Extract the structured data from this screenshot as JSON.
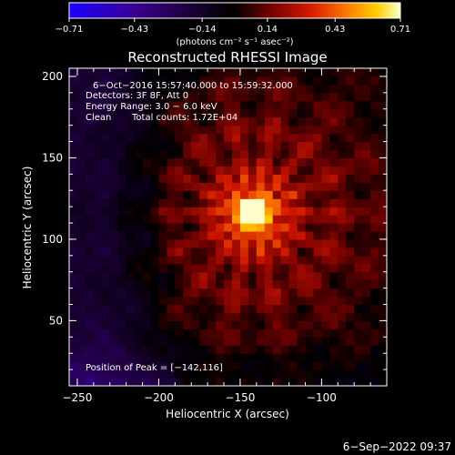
{
  "chart_data": {
    "type": "heatmap",
    "title": "Reconstructed RHESSI Image",
    "xlabel": "Heliocentric X (arcsec)",
    "ylabel": "Heliocentric Y (arcsec)",
    "xlim": [
      -255,
      -60
    ],
    "ylim": [
      10,
      205
    ],
    "xticks": [
      -250,
      -200,
      -150,
      -100
    ],
    "xtick_labels": [
      "−250",
      "−200",
      "−150",
      "−100"
    ],
    "yticks": [
      50,
      100,
      150,
      200
    ],
    "ytick_labels": [
      "50",
      "100",
      "150",
      "200"
    ],
    "colorbar": {
      "range": [
        -0.71,
        0.71
      ],
      "ticks": [
        -0.71,
        -0.43,
        -0.14,
        0.14,
        0.43,
        0.71
      ],
      "tick_labels": [
        "−0.71",
        "−0.43",
        "−0.14",
        "0.14",
        "0.43",
        "0.71"
      ],
      "unit_label": "(photons cm⁻² s⁻¹ asec⁻²)"
    },
    "peak": {
      "x": -142,
      "y": 116
    },
    "annotations": {
      "time_range": "6−Oct−2016 15:57:40.000 to 15:59:32.000",
      "detectors": "Detectors: 3F 8F, Att 0",
      "energy_range": "Energy Range: 3.0 − 6.0 keV",
      "clean": "Clean",
      "total_counts": "Total counts: 1.72E+04",
      "peak_position": "Position of Peak = [−142,116]"
    },
    "grid": false
  },
  "footer": {
    "timestamp": "6−Sep−2022 09:37"
  },
  "colormap": {
    "stops": [
      "#1a00ff",
      "#3a0090",
      "#180030",
      "#000000",
      "#6a0000",
      "#d01500",
      "#ff7a00",
      "#ffd000",
      "#ffffcc"
    ]
  }
}
